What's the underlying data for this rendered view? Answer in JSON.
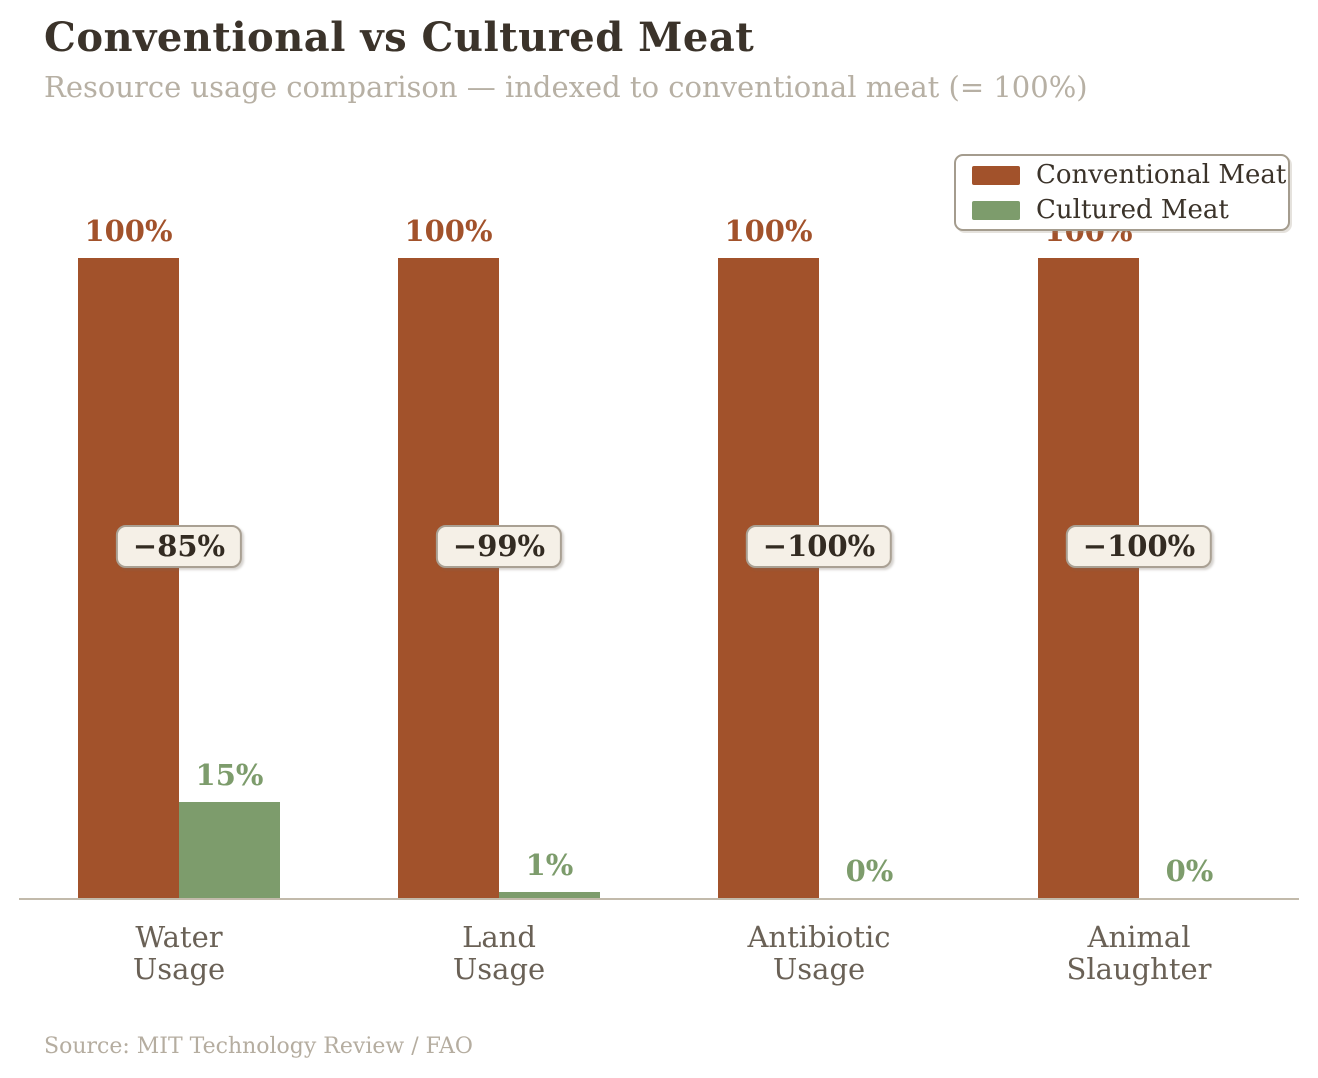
{
  "chart_data": {
    "type": "bar",
    "title": "Conventional vs Cultured Meat",
    "subtitle": "Resource usage comparison — indexed to conventional meat (= 100%)",
    "categories": [
      [
        "Water",
        "Usage"
      ],
      [
        "Land",
        "Usage"
      ],
      [
        "Antibiotic",
        "Usage"
      ],
      [
        "Animal",
        "Slaughter"
      ]
    ],
    "series": [
      {
        "name": "Conventional Meat",
        "color": "#A2522B",
        "values": [
          100,
          100,
          100,
          100
        ],
        "value_labels": [
          "100%",
          "100%",
          "100%",
          "100%"
        ]
      },
      {
        "name": "Cultured Meat",
        "color": "#7D9C6C",
        "values": [
          15,
          1,
          0,
          0
        ],
        "value_labels": [
          "15%",
          "1%",
          "0%",
          "0%"
        ]
      }
    ],
    "change_labels": [
      "−85%",
      "−99%",
      "−100%",
      "−100%"
    ],
    "ylim": [
      0,
      100
    ],
    "grid": false,
    "legend_position": "upper-right",
    "source": "Source: MIT Technology Review / FAO"
  },
  "colors": {
    "conventional": "#A2522B",
    "cultured": "#7D9C6C",
    "title": "#3B332A",
    "subtitle": "#B7B0A4",
    "tick": "#6A6156",
    "source": "#B5ADA0",
    "axis_line": "#C2BAAB",
    "badge_bg": "#F5F0E7",
    "badge_border": "#A9A093",
    "legend_border": "#A49C8E"
  }
}
